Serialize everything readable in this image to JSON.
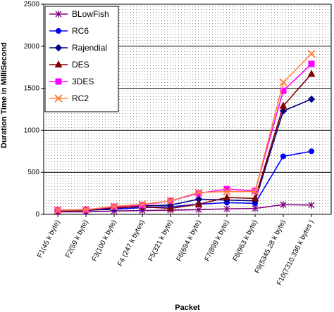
{
  "chart_data": {
    "type": "line",
    "title": "",
    "xlabel": "Packet",
    "ylabel": "Duration Time in MilliSecond",
    "ylim": [
      0,
      2500
    ],
    "yticks": [
      0,
      500,
      1000,
      1500,
      2000,
      2500
    ],
    "grid": true,
    "legend_position": "top-left",
    "categories": [
      "F1(45 k byte)",
      "F2(59 k byte)",
      "F3(100 k byte)",
      "F4 (247 k bytes)",
      "F5(321 k byte)",
      "F6(694 k byte)",
      "F7(899 k byte)",
      "F8(963 k byte)",
      "F9(5345.28 k byte)",
      "F10(7310.336 k bytes )"
    ],
    "series": [
      {
        "name": "BLowFish",
        "color": "#800080",
        "marker": "star",
        "values": [
          30,
          30,
          40,
          45,
          50,
          55,
          65,
          70,
          115,
          110
        ]
      },
      {
        "name": "RC6",
        "color": "#0000ff",
        "marker": "circle",
        "values": [
          50,
          50,
          60,
          80,
          90,
          120,
          140,
          130,
          690,
          750
        ]
      },
      {
        "name": "Rajendial",
        "color": "#000080",
        "marker": "diamond",
        "values": [
          40,
          45,
          70,
          100,
          110,
          180,
          170,
          160,
          1230,
          1370
        ]
      },
      {
        "name": "DES",
        "color": "#800000",
        "marker": "triangle",
        "values": [
          40,
          50,
          80,
          90,
          70,
          120,
          200,
          190,
          1290,
          1670
        ]
      },
      {
        "name": "3DES",
        "color": "#ff00ff",
        "marker": "square",
        "values": [
          50,
          55,
          90,
          110,
          160,
          250,
          300,
          280,
          1470,
          1790
        ]
      },
      {
        "name": "RC2",
        "color": "#ff8040",
        "marker": "x",
        "values": [
          50,
          55,
          95,
          120,
          160,
          260,
          270,
          270,
          1570,
          1910
        ]
      }
    ]
  }
}
